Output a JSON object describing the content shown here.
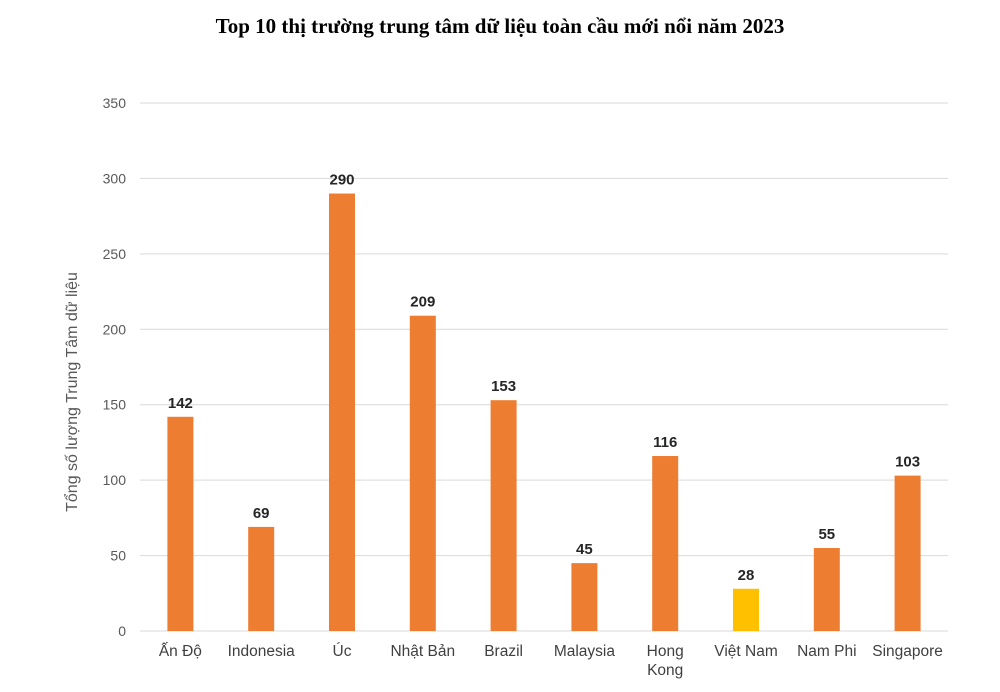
{
  "chart_data": {
    "type": "bar",
    "title": "Top 10 thị trường trung tâm dữ liệu toàn cầu mới nổi năm 2023",
    "xlabel": "",
    "ylabel": "Tổng số lượng Trung Tâm dữ liệu",
    "categories": [
      [
        "Ấn Độ"
      ],
      [
        "Indonesia"
      ],
      [
        "Úc"
      ],
      [
        "Nhật Bản"
      ],
      [
        "Brazil"
      ],
      [
        "Malaysia"
      ],
      [
        "Hong",
        "Kong"
      ],
      [
        "Việt Nam"
      ],
      [
        "Nam Phi"
      ],
      [
        "Singapore"
      ]
    ],
    "values": [
      142,
      69,
      290,
      209,
      153,
      45,
      116,
      28,
      55,
      103
    ],
    "bar_colors": [
      "#ED7D31",
      "#ED7D31",
      "#ED7D31",
      "#ED7D31",
      "#ED7D31",
      "#ED7D31",
      "#ED7D31",
      "#FFC000",
      "#ED7D31",
      "#ED7D31"
    ],
    "ylim": [
      0,
      350
    ],
    "yticks": [
      0,
      50,
      100,
      150,
      200,
      250,
      300,
      350
    ],
    "grid": true,
    "gridline_color": "#D9D9D9",
    "legend": "none"
  }
}
